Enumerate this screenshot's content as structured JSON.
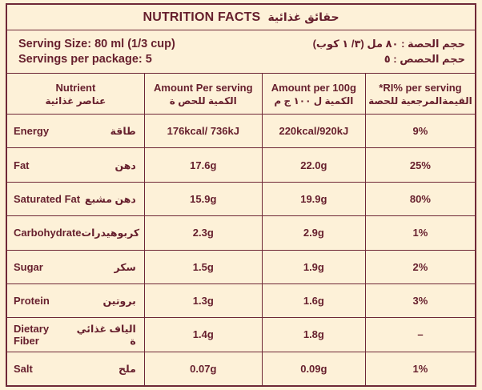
{
  "colors": {
    "background": "#fdf1d8",
    "ink": "#661f2d",
    "grid_line": "#6f2837"
  },
  "title": {
    "en": "NUTRITION FACTS",
    "ar": "حقائق غذائية"
  },
  "serving": {
    "size_en": "Serving Size: 80 ml (1/3 cup)",
    "count_en": "Servings per package: 5",
    "size_ar": "حجم الحصة : ٨٠ مل (٣/ ١ كوب)",
    "count_ar": "حجم الحصص : ٥"
  },
  "table": {
    "headers": [
      {
        "en": "Nutrient",
        "ar": "عناصر غذائية"
      },
      {
        "en": "Amount Per serving",
        "ar": "الكمية للحص ة"
      },
      {
        "en": "Amount per 100g",
        "ar": "الكمية ل ١٠٠ ج م"
      },
      {
        "en": "*RI% per serving",
        "ar": "القيمةالمرجعية للحصة"
      }
    ],
    "rows": [
      {
        "en": "Energy",
        "ar": "طاقة",
        "per_serving": "176kcal/ 736kJ",
        "per_100g": "220kcal/920kJ",
        "ri": "9%"
      },
      {
        "en": "Fat",
        "ar": "دهن",
        "per_serving": "17.6g",
        "per_100g": "22.0g",
        "ri": "25%"
      },
      {
        "en": "Saturated Fat",
        "ar": "دهن مشبع",
        "per_serving": "15.9g",
        "per_100g": "19.9g",
        "ri": "80%"
      },
      {
        "en": "Carbohydrate",
        "ar": "كربوهيدرات",
        "per_serving": "2.3g",
        "per_100g": "2.9g",
        "ri": "1%"
      },
      {
        "en": "Sugar",
        "ar": "سكر",
        "per_serving": "1.5g",
        "per_100g": "1.9g",
        "ri": "2%"
      },
      {
        "en": "Protein",
        "ar": "بروتين",
        "per_serving": "1.3g",
        "per_100g": "1.6g",
        "ri": "3%"
      },
      {
        "en": "Dietary Fiber",
        "ar": "الياف غذائي ة",
        "per_serving": "1.4g",
        "per_100g": "1.8g",
        "ri": "–"
      },
      {
        "en": "Salt",
        "ar": "ملح",
        "per_serving": "0.07g",
        "per_100g": "0.09g",
        "ri": "1%"
      }
    ]
  }
}
